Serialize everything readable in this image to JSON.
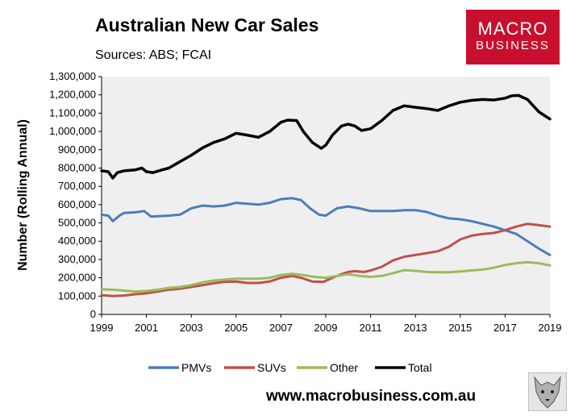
{
  "header": {
    "title": "Australian New Car Sales",
    "subtitle": "Sources: ABS; FCAI"
  },
  "logo": {
    "line1": "MACRO",
    "line2": "BUSINESS"
  },
  "footer": {
    "website": "www.macrobusiness.com.au"
  },
  "chart_data": {
    "type": "line",
    "ylabel": "Number (Rolling Annual)",
    "xlim": [
      1999,
      2019
    ],
    "ylim": [
      0,
      1300000
    ],
    "xticks": [
      "1999",
      "2001",
      "2003",
      "2005",
      "2007",
      "2009",
      "2011",
      "2013",
      "2015",
      "2017",
      "2019"
    ],
    "yticks": [
      "0",
      "100,000",
      "200,000",
      "300,000",
      "400,000",
      "500,000",
      "600,000",
      "700,000",
      "800,000",
      "900,000",
      "1,000,000",
      "1,100,000",
      "1,200,000",
      "1,300,000"
    ],
    "grid": false,
    "legend_position": "bottom",
    "series": [
      {
        "name": "PMVs",
        "color": "#4a7ebb",
        "x": [
          1999,
          1999.3,
          1999.5,
          1999.8,
          2000,
          2000.5,
          2000.9,
          2001.2,
          2002,
          2002.5,
          2003,
          2003.5,
          2004,
          2004.5,
          2005,
          2005.5,
          2006,
          2006.5,
          2007,
          2007.5,
          2007.9,
          2008.3,
          2008.7,
          2009,
          2009.5,
          2010,
          2010.5,
          2011,
          2011.5,
          2012,
          2012.5,
          2013,
          2013.5,
          2014,
          2014.5,
          2015,
          2015.5,
          2016,
          2016.5,
          2017,
          2017.5,
          2018,
          2018.5,
          2019
        ],
        "values": [
          545000,
          540000,
          510000,
          540000,
          555000,
          558000,
          565000,
          535000,
          540000,
          545000,
          580000,
          595000,
          590000,
          595000,
          610000,
          605000,
          600000,
          610000,
          630000,
          635000,
          625000,
          580000,
          545000,
          540000,
          580000,
          590000,
          580000,
          565000,
          565000,
          565000,
          570000,
          570000,
          560000,
          540000,
          525000,
          520000,
          510000,
          495000,
          480000,
          460000,
          440000,
          400000,
          360000,
          325000
        ]
      },
      {
        "name": "SUVs",
        "color": "#c0504d",
        "x": [
          1999,
          1999.5,
          2000,
          2000.5,
          2001,
          2001.5,
          2002,
          2002.5,
          2003,
          2003.5,
          2004,
          2004.5,
          2005,
          2005.5,
          2006,
          2006.5,
          2007,
          2007.5,
          2007.9,
          2008.4,
          2008.9,
          2009.3,
          2009.7,
          2010,
          2010.3,
          2010.7,
          2011,
          2011.5,
          2012,
          2012.5,
          2013,
          2013.5,
          2014,
          2014.5,
          2015,
          2015.5,
          2016,
          2016.5,
          2017,
          2017.5,
          2018,
          2018.5,
          2019
        ],
        "values": [
          105000,
          100000,
          103000,
          110000,
          115000,
          125000,
          135000,
          140000,
          150000,
          160000,
          170000,
          178000,
          180000,
          172000,
          172000,
          180000,
          200000,
          210000,
          200000,
          180000,
          178000,
          200000,
          220000,
          232000,
          236000,
          232000,
          240000,
          260000,
          295000,
          315000,
          325000,
          335000,
          345000,
          370000,
          410000,
          430000,
          440000,
          445000,
          460000,
          480000,
          495000,
          488000,
          480000
        ]
      },
      {
        "name": "Other",
        "color": "#9bbb59",
        "x": [
          1999,
          1999.5,
          2000,
          2000.5,
          2001,
          2001.5,
          2002,
          2002.5,
          2003,
          2003.5,
          2004,
          2004.5,
          2005,
          2005.5,
          2006,
          2006.5,
          2007,
          2007.5,
          2008,
          2008.5,
          2009,
          2009.5,
          2010,
          2010.5,
          2011,
          2011.5,
          2012,
          2012.5,
          2013,
          2013.5,
          2014,
          2014.5,
          2015,
          2015.5,
          2016,
          2016.5,
          2017,
          2017.5,
          2018,
          2018.5,
          2019
        ],
        "values": [
          137000,
          135000,
          130000,
          125000,
          128000,
          135000,
          145000,
          150000,
          160000,
          175000,
          185000,
          190000,
          195000,
          195000,
          195000,
          200000,
          215000,
          222000,
          215000,
          205000,
          200000,
          210000,
          220000,
          210000,
          205000,
          210000,
          225000,
          242000,
          238000,
          232000,
          230000,
          230000,
          235000,
          240000,
          245000,
          255000,
          270000,
          280000,
          285000,
          280000,
          268000
        ]
      },
      {
        "name": "Total",
        "color": "#000000",
        "x": [
          1999,
          1999.3,
          1999.5,
          1999.7,
          2000,
          2000.5,
          2000.8,
          2001,
          2001.3,
          2001.7,
          2002,
          2002.5,
          2003,
          2003.5,
          2004,
          2004.5,
          2005,
          2005.5,
          2006,
          2006.5,
          2007,
          2007.3,
          2007.7,
          2008,
          2008.4,
          2008.8,
          2009,
          2009.3,
          2009.7,
          2010,
          2010.3,
          2010.6,
          2011,
          2011.5,
          2012,
          2012.5,
          2013,
          2013.5,
          2014,
          2014.5,
          2015,
          2015.5,
          2016,
          2016.5,
          2017,
          2017.3,
          2017.6,
          2018,
          2018.5,
          2019
        ],
        "values": [
          785000,
          780000,
          745000,
          775000,
          785000,
          790000,
          800000,
          780000,
          775000,
          790000,
          800000,
          835000,
          870000,
          910000,
          940000,
          960000,
          990000,
          980000,
          968000,
          1000000,
          1050000,
          1062000,
          1060000,
          1000000,
          940000,
          908000,
          925000,
          980000,
          1030000,
          1040000,
          1030000,
          1005000,
          1015000,
          1060000,
          1115000,
          1140000,
          1132000,
          1125000,
          1115000,
          1140000,
          1160000,
          1170000,
          1175000,
          1172000,
          1182000,
          1195000,
          1197000,
          1175000,
          1108000,
          1068000
        ]
      }
    ]
  }
}
